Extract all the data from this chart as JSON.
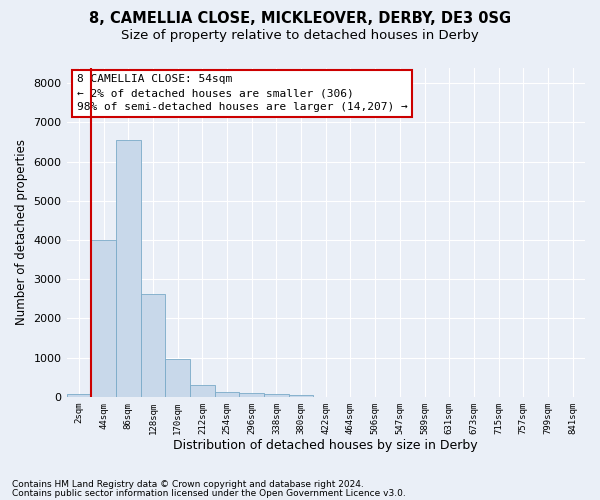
{
  "title1": "8, CAMELLIA CLOSE, MICKLEOVER, DERBY, DE3 0SG",
  "title2": "Size of property relative to detached houses in Derby",
  "xlabel": "Distribution of detached houses by size in Derby",
  "ylabel": "Number of detached properties",
  "bar_color": "#c8d8ea",
  "bar_edge_color": "#7aaac8",
  "categories": [
    "2sqm",
    "44sqm",
    "86sqm",
    "128sqm",
    "170sqm",
    "212sqm",
    "254sqm",
    "296sqm",
    "338sqm",
    "380sqm",
    "422sqm",
    "464sqm",
    "506sqm",
    "547sqm",
    "589sqm",
    "631sqm",
    "673sqm",
    "715sqm",
    "757sqm",
    "799sqm",
    "841sqm"
  ],
  "values": [
    65,
    4000,
    6550,
    2620,
    960,
    310,
    130,
    110,
    80,
    55,
    0,
    0,
    0,
    0,
    0,
    0,
    0,
    0,
    0,
    0,
    0
  ],
  "ylim": [
    0,
    8400
  ],
  "yticks": [
    0,
    1000,
    2000,
    3000,
    4000,
    5000,
    6000,
    7000,
    8000
  ],
  "annotation_text": "8 CAMELLIA CLOSE: 54sqm\n← 2% of detached houses are smaller (306)\n98% of semi-detached houses are larger (14,207) →",
  "marker_color": "#cc0000",
  "footer1": "Contains HM Land Registry data © Crown copyright and database right 2024.",
  "footer2": "Contains public sector information licensed under the Open Government Licence v3.0.",
  "bg_color": "#eaeff7",
  "grid_color": "#ffffff",
  "title1_fontsize": 10.5,
  "title2_fontsize": 9.5,
  "annotation_fontsize": 8,
  "ylabel_fontsize": 8.5,
  "xlabel_fontsize": 9
}
